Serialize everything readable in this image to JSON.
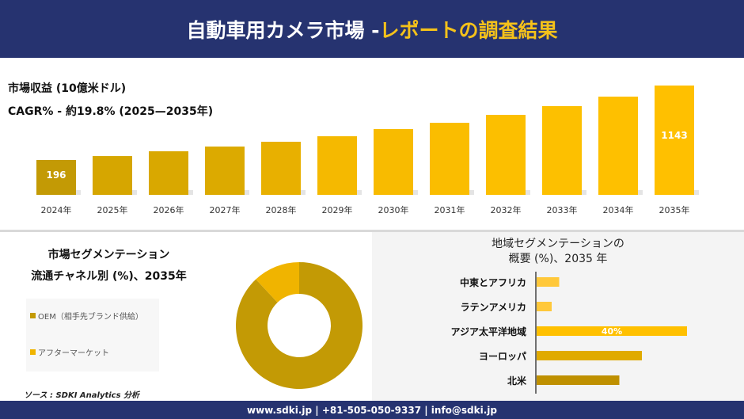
{
  "header": {
    "title_main": "自動車用カメラ市場 -",
    "title_highlight": "レポートの調査結果"
  },
  "kpi": {
    "revenue_label": "市場収益 (10億米ドル)",
    "cagr_label": "CAGR% - 約19.8% (2025—2035年)"
  },
  "colors": {
    "navy": "#263370",
    "gold_dark": "#c39a05",
    "gold": "#d9a800",
    "gold_light": "#ffc000",
    "accent_text": "#f5c21a"
  },
  "chart_data": [
    {
      "type": "bar",
      "title": "",
      "categories": [
        "2024年",
        "2025年",
        "2026年",
        "2027年",
        "2028年",
        "2029年",
        "2030年",
        "2031年",
        "2032年",
        "2033年",
        "2034年",
        "2035年"
      ],
      "values": [
        196,
        246,
        307,
        367,
        428,
        498,
        589,
        669,
        770,
        881,
        1002,
        1143
      ],
      "data_labels": {
        "0": "196",
        "11": "1143"
      },
      "grid": false
    },
    {
      "type": "pie",
      "donut": true,
      "title": "市場セグメンテーション 流通チャネル別 (%)、2035年",
      "categories": [
        "OEM（相手先ブランド供給）",
        "アフターマーケット"
      ],
      "values": [
        88,
        12
      ],
      "colors": [
        "#c39a05",
        "#f0b400"
      ],
      "legend": "left"
    },
    {
      "type": "bar",
      "orientation": "horizontal",
      "title": "地域セグメンテーションの 概要 (%)、2035 年",
      "categories": [
        "中東とアフリカ",
        "ラテンアメリカ",
        "アジア太平洋地域",
        "ヨーロッパ",
        "北米"
      ],
      "values": [
        6,
        4,
        40,
        28,
        22
      ],
      "data_labels": {
        "2": "40%"
      },
      "colors": [
        "#ffc83a",
        "#ffc83a",
        "#ffc000",
        "#e0aa00",
        "#bf9000"
      ]
    }
  ],
  "segment": {
    "title1": "市場セグメンテーション",
    "title2": "流通チャネル別 (%)、2035年"
  },
  "region": {
    "title1": "地域セグメンテーションの",
    "title2": "概要 (%)、2035 年"
  },
  "source": "ソース : SDKI Analytics 分析",
  "footer": "www.sdki.jp | +81-505-050-9337 | info@sdki.jp"
}
